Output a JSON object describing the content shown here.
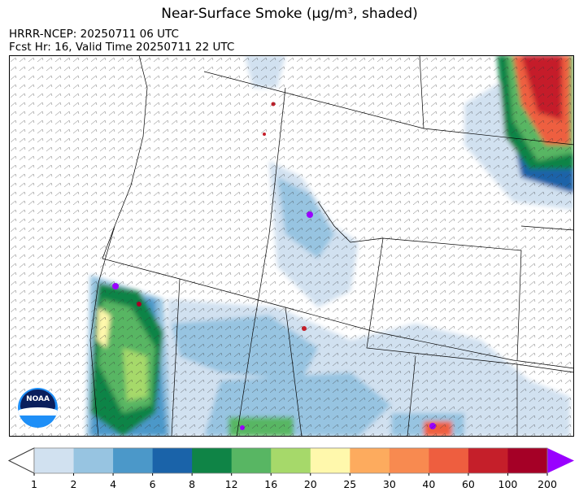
{
  "title": "Near-Surface Smoke (μg/m³, shaded)",
  "subtitle_model": "HRRR-NCEP: 20250711 06 UTC",
  "subtitle_valid": "Fcst Hr: 16, Valid Time 20250711 22 UTC",
  "logo_text": "NOAA",
  "colorbar": {
    "levels": [
      "1",
      "2",
      "4",
      "6",
      "8",
      "12",
      "16",
      "20",
      "25",
      "30",
      "40",
      "60",
      "100",
      "200"
    ],
    "colors": [
      "#d1e1f0",
      "#97c4e1",
      "#4b98c9",
      "#1a63a9",
      "#0f8446",
      "#58b663",
      "#a6d96a",
      "#fff8ac",
      "#fdab5e",
      "#f88a50",
      "#ee5e3f",
      "#c51f2a",
      "#a50026"
    ],
    "under_color": "#ffffff",
    "over_color": "#9900ff",
    "extend": "both"
  }
}
